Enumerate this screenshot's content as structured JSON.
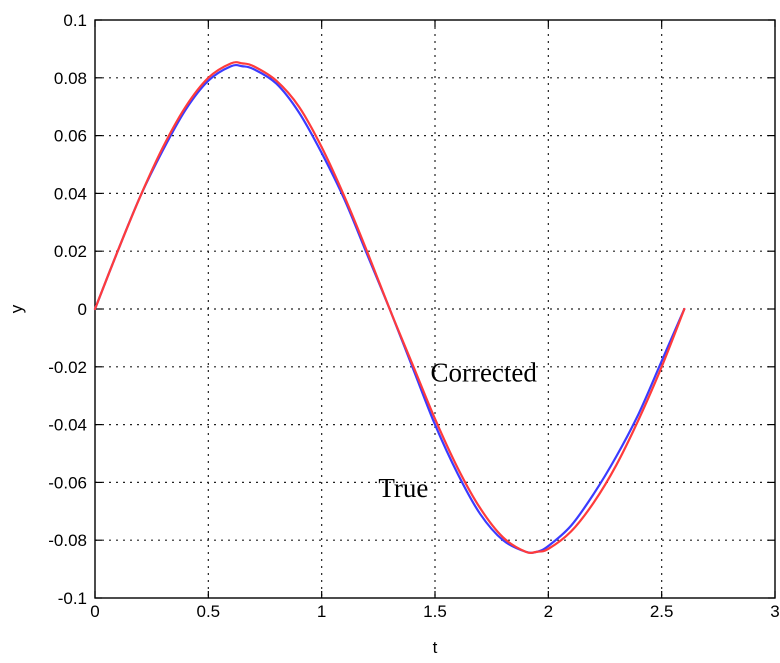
{
  "chart_data": {
    "type": "line",
    "title": "",
    "xlabel": "t",
    "ylabel": "y",
    "xlim": [
      0,
      3
    ],
    "ylim": [
      -0.1,
      0.1
    ],
    "x_ticks": [
      0,
      0.5,
      1,
      1.5,
      2,
      2.5,
      3
    ],
    "x_tick_labels": [
      "0",
      "0.5",
      "1",
      "1.5",
      "2",
      "2.5",
      "3"
    ],
    "y_ticks": [
      0.1,
      0.08,
      0.06,
      0.04,
      0.02,
      0,
      -0.02,
      -0.04,
      -0.06,
      -0.08,
      -0.1
    ],
    "y_tick_labels": [
      "0.1",
      "0.08",
      "0.06",
      "0.04",
      "0.02",
      "0",
      "-0.02",
      "-0.04",
      "-0.06",
      "-0.08",
      "-0.1"
    ],
    "grid": true,
    "series": [
      {
        "name": "True",
        "color": "#3b3bff",
        "x": [
          0,
          0.1,
          0.2,
          0.3,
          0.4,
          0.5,
          0.6,
          0.65,
          0.7,
          0.8,
          0.9,
          1.0,
          1.1,
          1.2,
          1.3,
          1.4,
          1.5,
          1.6,
          1.7,
          1.8,
          1.9,
          1.95,
          2.0,
          2.1,
          2.2,
          2.3,
          2.4,
          2.5,
          2.6
        ],
        "y": [
          0,
          0.02,
          0.039,
          0.055,
          0.069,
          0.079,
          0.084,
          0.084,
          0.083,
          0.078,
          0.068,
          0.054,
          0.038,
          0.019,
          0.0,
          -0.02,
          -0.04,
          -0.057,
          -0.071,
          -0.08,
          -0.084,
          -0.084,
          -0.082,
          -0.075,
          -0.064,
          -0.051,
          -0.036,
          -0.018,
          0.0
        ]
      },
      {
        "name": "Corrected",
        "color": "#ff3b3b",
        "x": [
          0,
          0.1,
          0.2,
          0.3,
          0.4,
          0.5,
          0.6,
          0.65,
          0.7,
          0.8,
          0.9,
          1.0,
          1.1,
          1.2,
          1.3,
          1.4,
          1.5,
          1.6,
          1.7,
          1.8,
          1.9,
          1.95,
          2.0,
          2.1,
          2.2,
          2.3,
          2.4,
          2.5,
          2.6
        ],
        "y": [
          0,
          0.02,
          0.039,
          0.056,
          0.07,
          0.08,
          0.085,
          0.085,
          0.084,
          0.079,
          0.07,
          0.056,
          0.039,
          0.02,
          0.0,
          -0.019,
          -0.038,
          -0.055,
          -0.069,
          -0.079,
          -0.084,
          -0.084,
          -0.083,
          -0.077,
          -0.067,
          -0.054,
          -0.038,
          -0.02,
          0.0
        ]
      }
    ],
    "annotations": [
      {
        "text": "Corrected",
        "x": 1.48,
        "y": -0.025
      },
      {
        "text": "True",
        "x": 1.25,
        "y": -0.065
      }
    ]
  }
}
